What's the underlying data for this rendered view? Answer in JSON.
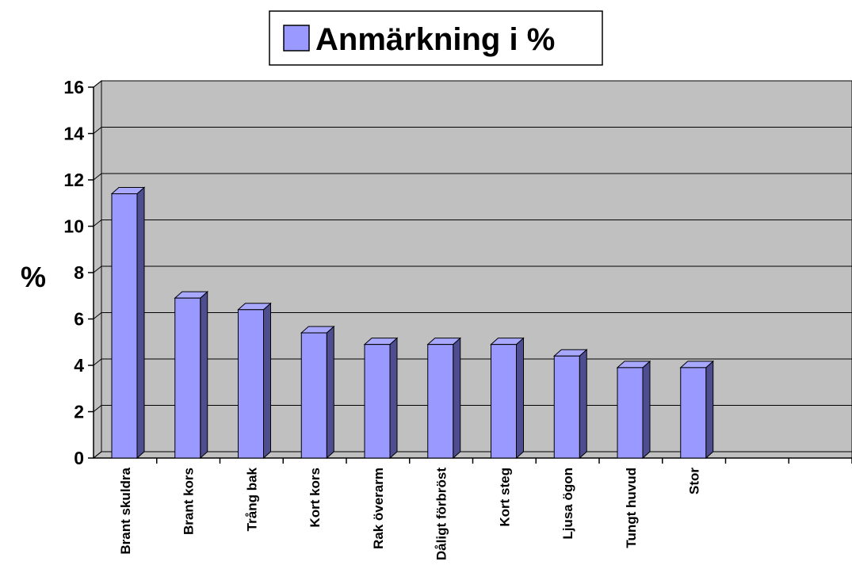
{
  "chart_data": {
    "type": "bar3d",
    "categories": [
      "Brant skuldra",
      "Brant  kors",
      "Trång bak",
      "Kort kors",
      "Rak överarm",
      "Dåligt förbröst",
      "Kort steg",
      "Ljusa ögon",
      "Tungt huvud",
      "Stor",
      null,
      null
    ],
    "series": [
      {
        "name": "Anmärkning i %",
        "color": "#9999ff",
        "values": [
          11.4,
          6.9,
          6.4,
          5.4,
          4.9,
          4.9,
          4.9,
          4.4,
          3.9,
          3.9,
          null,
          null
        ]
      }
    ],
    "y_label": "%",
    "ylim": [
      0,
      16
    ],
    "yticks": [
      0,
      2,
      4,
      6,
      8,
      10,
      12,
      14,
      16
    ],
    "grid": true
  }
}
